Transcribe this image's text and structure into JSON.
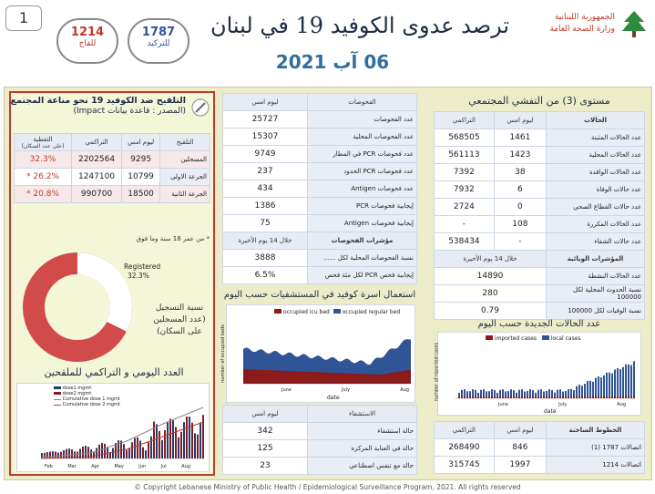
{
  "page_number": "1",
  "header": {
    "title": "ترصد عدوى الكوفيد 19 في لبنان",
    "date": "06 آب 2021",
    "ministry_line1": "الجمهورية اللبنانية",
    "ministry_line2": "وزارة الصحة العامة",
    "hotline_1787": {
      "number": "1787",
      "label": "للتركيد"
    },
    "hotline_1214": {
      "number": "1214",
      "label": "للقاح"
    }
  },
  "vaccination": {
    "title": "التلقيح ضد الكوفيد 19  نحو مناعة المجتمع",
    "subtitle": "(المصدر : قاعدة بيانات Impact)",
    "headers": [
      "التلقيح",
      "ليوم امس",
      "التراكمي",
      "التغطية",
      "(على عدد السكان)"
    ],
    "rows": [
      {
        "label": "المسجلين",
        "yesterday": "9295",
        "cumulative": "2202564",
        "coverage": "32.3%"
      },
      {
        "label": "الجرعة الاولى",
        "yesterday": "10799",
        "cumulative": "1247100",
        "coverage": "26.2% *"
      },
      {
        "label": "الجرعة الثانية",
        "yesterday": "18500",
        "cumulative": "990700",
        "coverage": "20.8% *"
      }
    ],
    "note": "* من عمر 18 سنة وما فوق",
    "donut": {
      "label": "Registered",
      "percent": "32.3%",
      "value": 32.3,
      "caption": "نسبة التسجيل (عدد المسجلين على السكان)"
    },
    "daily_title": "العدد اليومي و التراكمي للملقحين",
    "daily_legend": [
      "dose1 mgmt",
      "dose2 mgmt",
      "Cumulative dose 1 mgmt",
      "Cumulative dose 2 mgmt"
    ],
    "daily_months": [
      "Feb",
      "Mar",
      "Apr",
      "May",
      "Jun",
      "Jul",
      "Aug"
    ]
  },
  "tests": {
    "headers": [
      "الفحوصات",
      "ليوم امس"
    ],
    "rows": [
      {
        "label": "عدد الفحوصات",
        "value": "25727"
      },
      {
        "label": "عدد الفحوصات المحلية",
        "value": "15307"
      },
      {
        "label": "عدد فحوصات PCR في المطار",
        "value": "9749"
      },
      {
        "label": "عدد فحوصات PCR الحدود",
        "value": "237"
      },
      {
        "label": "عدد فحوصات Antigen",
        "value": "434"
      },
      {
        "label": "إيجابية فحوصات    PCR",
        "value": "1386"
      },
      {
        "label": "إيجابية فحوصات    Antigen",
        "value": "75"
      }
    ],
    "indicators_header": "مؤشرات الفحوصات",
    "indicators_period": "خلال 14 يوم الأخيرة",
    "indicators": [
      {
        "label": "نسبة الفحوصات  المحلية لكل ......",
        "value": "3888"
      },
      {
        "label": "إيجابية فحص PCR لكل مئة فحص",
        "value": "6.5%"
      }
    ]
  },
  "hospital_chart": {
    "title": "استعمال اسرة كوفيد في المستشفيات حسب اليوم",
    "legend": [
      "occupied icu bed",
      "occupied regular bed"
    ],
    "ylabel": "number of occupied beds",
    "xlabel": "date",
    "xticks": [
      "June",
      "July",
      "Aug"
    ]
  },
  "hospital": {
    "headers": [
      "الاستشفاء",
      "ليوم امس"
    ],
    "rows": [
      {
        "label": "حالة استشفاء",
        "value": "342"
      },
      {
        "label": "حالة في العناية المركزة",
        "value": "125"
      },
      {
        "label": "حالة مع تنفس اصطناعي",
        "value": "23"
      }
    ]
  },
  "community": {
    "title": "مستوى (3) من التفشي المجتمعي",
    "headers": [
      "الحالات",
      "ليوم امس",
      "التراكمي"
    ],
    "rows": [
      {
        "label": "عدد الحالات المثبتة",
        "yesterday": "1461",
        "cumulative": "568505"
      },
      {
        "label": "عدد الحالات المحلية",
        "yesterday": "1423",
        "cumulative": "561113"
      },
      {
        "label": "عدد الحالات الوافدة",
        "yesterday": "38",
        "cumulative": "7392"
      },
      {
        "label": "عدد حالات الوفاة",
        "yesterday": "6",
        "cumulative": "7932"
      },
      {
        "label": "عدد حالات القطاع الصحي",
        "yesterday": "0",
        "cumulative": "2724"
      },
      {
        "label": "عدد الحالات المكررة",
        "yesterday": "108",
        "cumulative": "-"
      },
      {
        "label": "عدد حالات الشفاء",
        "yesterday": "-",
        "cumulative": "538434"
      }
    ],
    "indicators_header": "المؤشرات الوبائية",
    "indicators_period": "خلال 14 يوم الأخيرة",
    "indicators": [
      {
        "label": "عدد الحالات النشطة",
        "value": "14890"
      },
      {
        "label": "نسبة الحدوث المحلية لكل 100000",
        "value": "280"
      },
      {
        "label": "نسبة الوفيات لكل 100000",
        "value": "0.79"
      }
    ]
  },
  "cases_chart": {
    "title": "عدد الحالات الجديدة حسب اليوم",
    "legend": [
      "imported cases",
      "local cases"
    ],
    "ylabel": "number of reported cases",
    "xlabel": "date",
    "xticks": [
      "June",
      "July",
      "Aug"
    ]
  },
  "hotlines": {
    "headers": [
      "الخطوط الساخنة",
      "ليوم امس",
      "التراكمي"
    ],
    "rows": [
      {
        "label": "اتصالات 1787 (1)",
        "yesterday": "846",
        "cumulative": "268490"
      },
      {
        "label": "اتصالات 1214",
        "yesterday": "1997",
        "cumulative": "315745"
      }
    ]
  },
  "footer": "© Copyright Lebanese Ministry of Public Health / Epidemiological Surveillance Program, 2021. All rights reserved",
  "colors": {
    "navy": "#1e2b43",
    "red": "#c0392b",
    "board": "#ecedc8",
    "icu": "#8b1a1a",
    "regular": "#2f5597",
    "blue": "#1f3b78"
  }
}
